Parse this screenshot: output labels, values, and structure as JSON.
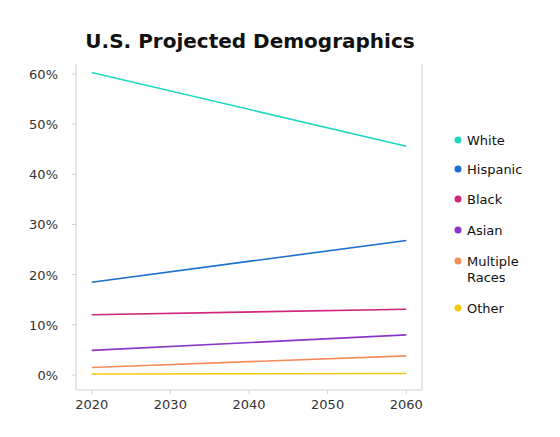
{
  "chart_data": {
    "type": "line",
    "title": "U.S. Projected Demographics",
    "x": [
      2020,
      2060
    ],
    "xlim": [
      2018,
      2062
    ],
    "xticks": [
      2020,
      2030,
      2040,
      2050,
      2060
    ],
    "ylim": [
      -3,
      62
    ],
    "yticks": [
      {
        "value": 0,
        "label": "0%"
      },
      {
        "value": 10,
        "label": "10%"
      },
      {
        "value": 20,
        "label": "20%"
      },
      {
        "value": 30,
        "label": "30%"
      },
      {
        "value": 40,
        "label": "40%"
      },
      {
        "value": 50,
        "label": "50%"
      },
      {
        "value": 60,
        "label": "60%"
      }
    ],
    "grid": false,
    "legend": "right",
    "series": [
      {
        "name": "White",
        "color": "#1fd8c0",
        "values": [
          60.3,
          45.6
        ]
      },
      {
        "name": "Hispanic",
        "color": "#1a6fd0",
        "values": [
          18.5,
          26.8
        ]
      },
      {
        "name": "Black",
        "color": "#d0257a",
        "values": [
          12.0,
          13.1
        ]
      },
      {
        "name": "Asian",
        "color": "#8a35c8",
        "values": [
          4.9,
          8.0
        ]
      },
      {
        "name": "Multiple Races",
        "color": "#f78c5a",
        "values": [
          1.5,
          3.8
        ]
      },
      {
        "name": "Other",
        "color": "#f2c80f",
        "values": [
          0.2,
          0.3
        ]
      }
    ]
  }
}
